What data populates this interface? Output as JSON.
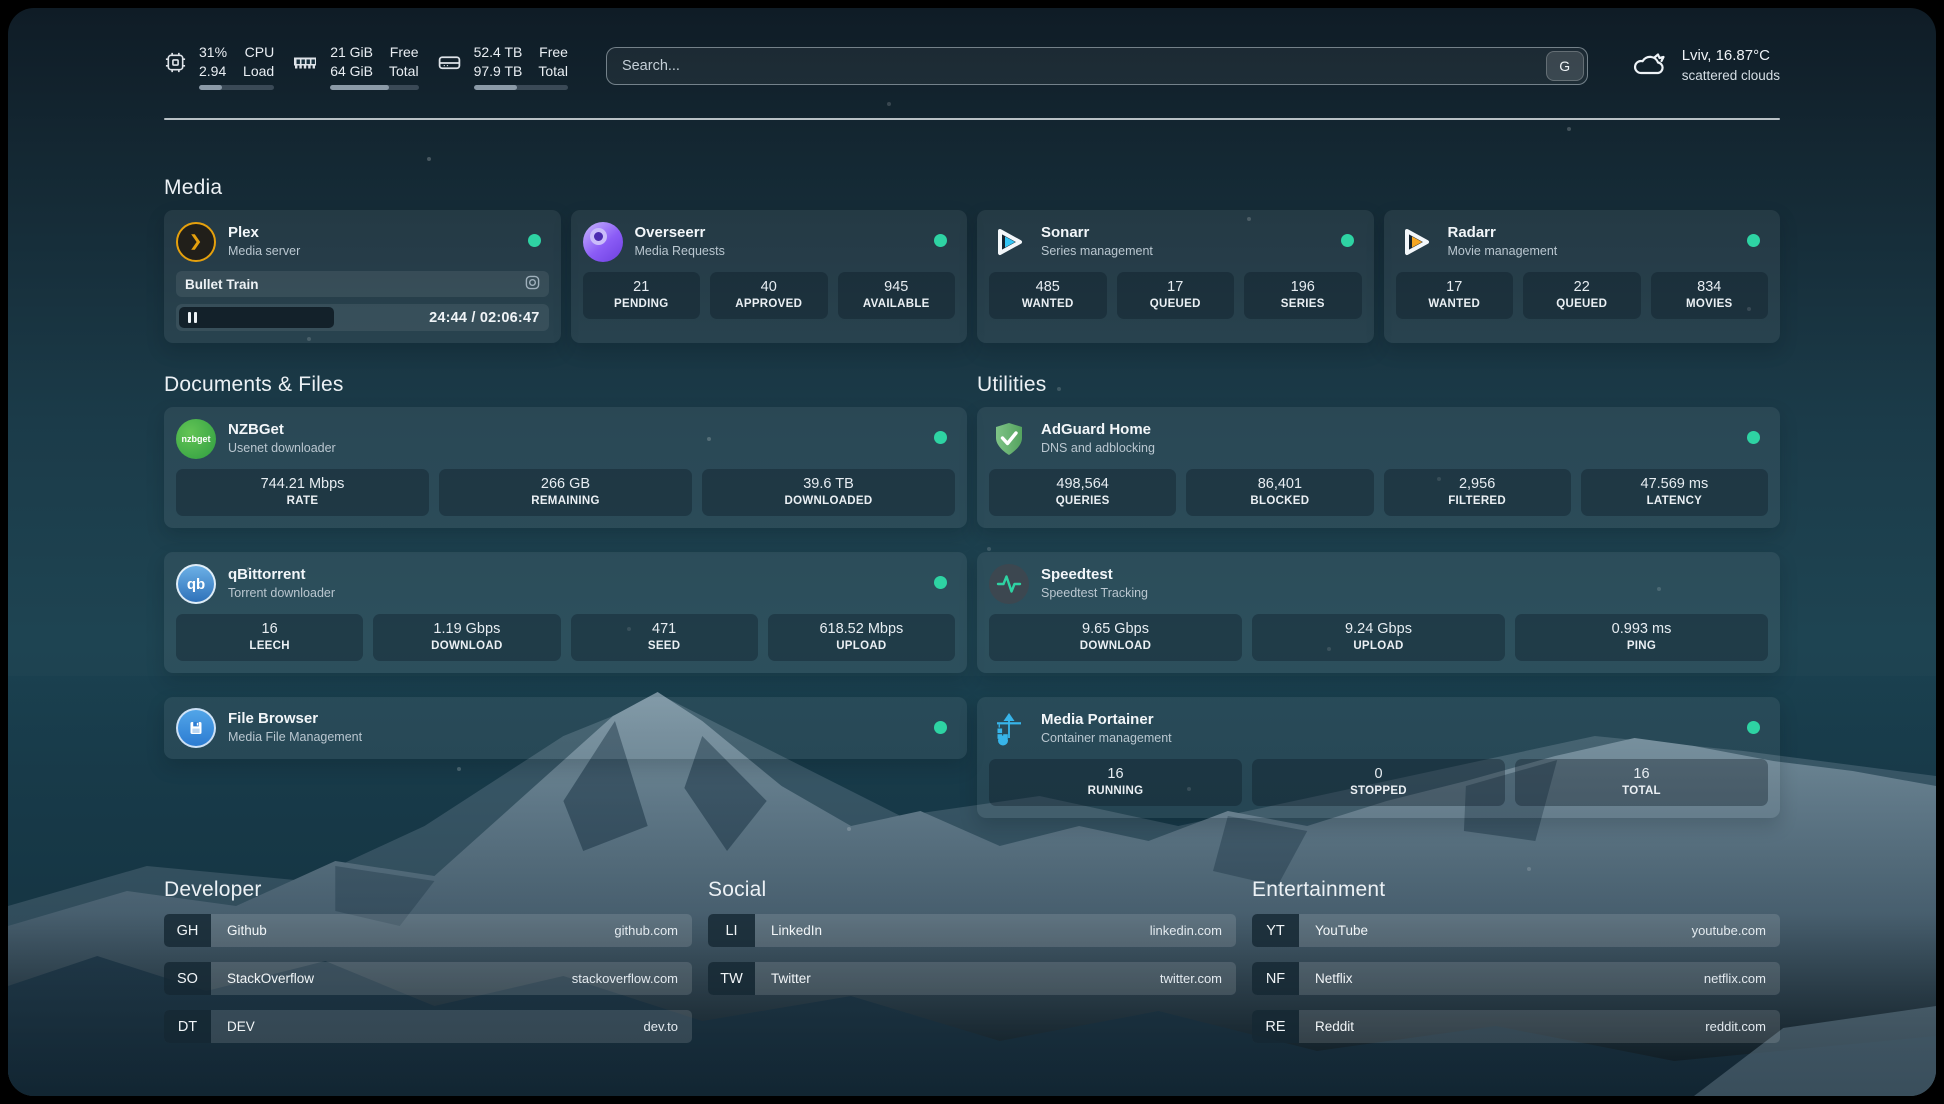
{
  "topbar": {
    "cpu": {
      "value_top": "31%",
      "value_bottom": "2.94",
      "label_top": "CPU",
      "label_bottom": "Load",
      "progress_pct": 31
    },
    "memory": {
      "value_top": "21 GiB",
      "value_bottom": "64 GiB",
      "label_top": "Free",
      "label_bottom": "Total",
      "progress_pct": 67
    },
    "disk": {
      "value_top": "52.4 TB",
      "value_bottom": "97.9 TB",
      "label_top": "Free",
      "label_bottom": "Total",
      "progress_pct": 46
    },
    "search": {
      "placeholder": "Search...",
      "provider_button": "G"
    },
    "weather": {
      "summary": "Lviv, 16.87°C",
      "condition": "scattered clouds"
    }
  },
  "media": {
    "title": "Media",
    "plex": {
      "name": "Plex",
      "subtitle": "Media server",
      "status": "online",
      "now_playing": "Bullet Train",
      "time": "24:44 / 02:06:47"
    },
    "overseerr": {
      "name": "Overseerr",
      "subtitle": "Media Requests",
      "status": "online",
      "stats": [
        {
          "value": "21",
          "label": "PENDING"
        },
        {
          "value": "40",
          "label": "APPROVED"
        },
        {
          "value": "945",
          "label": "AVAILABLE"
        }
      ]
    },
    "sonarr": {
      "name": "Sonarr",
      "subtitle": "Series management",
      "status": "online",
      "stats": [
        {
          "value": "485",
          "label": "WANTED"
        },
        {
          "value": "17",
          "label": "QUEUED"
        },
        {
          "value": "196",
          "label": "SERIES"
        }
      ]
    },
    "radarr": {
      "name": "Radarr",
      "subtitle": "Movie management",
      "status": "online",
      "stats": [
        {
          "value": "17",
          "label": "WANTED"
        },
        {
          "value": "22",
          "label": "QUEUED"
        },
        {
          "value": "834",
          "label": "MOVIES"
        }
      ]
    }
  },
  "documents": {
    "title": "Documents & Files",
    "nzbget": {
      "name": "NZBGet",
      "subtitle": "Usenet downloader",
      "status": "online",
      "stats": [
        {
          "value": "744.21 Mbps",
          "label": "RATE"
        },
        {
          "value": "266 GB",
          "label": "REMAINING"
        },
        {
          "value": "39.6 TB",
          "label": "DOWNLOADED"
        }
      ]
    },
    "qbittorrent": {
      "name": "qBittorrent",
      "subtitle": "Torrent downloader",
      "status": "online",
      "stats": [
        {
          "value": "16",
          "label": "LEECH"
        },
        {
          "value": "1.19 Gbps",
          "label": "DOWNLOAD"
        },
        {
          "value": "471",
          "label": "SEED"
        },
        {
          "value": "618.52 Mbps",
          "label": "UPLOAD"
        }
      ]
    },
    "filebrowser": {
      "name": "File Browser",
      "subtitle": "Media File Management",
      "status": "online"
    }
  },
  "utilities": {
    "title": "Utilities",
    "adguard": {
      "name": "AdGuard Home",
      "subtitle": "DNS and adblocking",
      "status": "online",
      "stats": [
        {
          "value": "498,564",
          "label": "QUERIES"
        },
        {
          "value": "86,401",
          "label": "BLOCKED"
        },
        {
          "value": "2,956",
          "label": "FILTERED"
        },
        {
          "value": "47.569 ms",
          "label": "LATENCY"
        }
      ]
    },
    "speedtest": {
      "name": "Speedtest",
      "subtitle": "Speedtest Tracking",
      "stats": [
        {
          "value": "9.65 Gbps",
          "label": "DOWNLOAD"
        },
        {
          "value": "9.24 Gbps",
          "label": "UPLOAD"
        },
        {
          "value": "0.993 ms",
          "label": "PING"
        }
      ]
    },
    "portainer": {
      "name": "Media Portainer",
      "subtitle": "Container management",
      "status": "online",
      "stats": [
        {
          "value": "16",
          "label": "RUNNING"
        },
        {
          "value": "0",
          "label": "STOPPED"
        },
        {
          "value": "16",
          "label": "TOTAL"
        }
      ]
    }
  },
  "bookmarks": {
    "developer": {
      "title": "Developer",
      "items": [
        {
          "abbr": "GH",
          "name": "Github",
          "url": "github.com"
        },
        {
          "abbr": "SO",
          "name": "StackOverflow",
          "url": "stackoverflow.com"
        },
        {
          "abbr": "DT",
          "name": "DEV",
          "url": "dev.to"
        }
      ]
    },
    "social": {
      "title": "Social",
      "items": [
        {
          "abbr": "LI",
          "name": "LinkedIn",
          "url": "linkedin.com"
        },
        {
          "abbr": "TW",
          "name": "Twitter",
          "url": "twitter.com"
        }
      ]
    },
    "entertainment": {
      "title": "Entertainment",
      "items": [
        {
          "abbr": "YT",
          "name": "YouTube",
          "url": "youtube.com"
        },
        {
          "abbr": "NF",
          "name": "Netflix",
          "url": "netflix.com"
        },
        {
          "abbr": "RE",
          "name": "Reddit",
          "url": "reddit.com"
        }
      ]
    }
  },
  "colors": {
    "status_online": "#2ed3a3",
    "accent_plex": "#e5a00d",
    "background_teal": "#1e4452"
  }
}
